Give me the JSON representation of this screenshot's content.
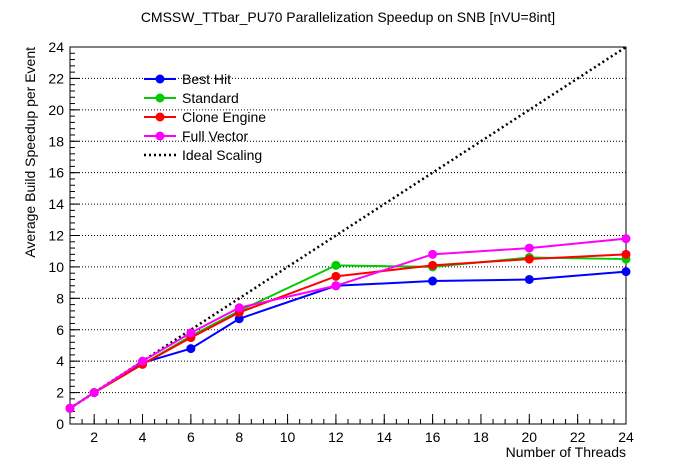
{
  "chart_data": {
    "type": "line",
    "title": "CMSSW_TTbar_PU70 Parallelization Speedup on SNB [nVU=8int]",
    "xlabel": "Number of Threads",
    "ylabel": "Average Build Speedup per Event",
    "xlim": [
      1,
      24
    ],
    "ylim": [
      0,
      24
    ],
    "xticks": [
      2,
      4,
      6,
      8,
      10,
      12,
      14,
      16,
      18,
      20,
      22,
      24
    ],
    "yticks": [
      0,
      2,
      4,
      6,
      8,
      10,
      12,
      14,
      16,
      18,
      20,
      22,
      24
    ],
    "grid": true,
    "legend_position": "top-left",
    "x": [
      1,
      2,
      4,
      6,
      8,
      12,
      16,
      20,
      24
    ],
    "series": [
      {
        "name": "Best Hit",
        "color": "#0000ff",
        "values": [
          1.0,
          2.0,
          3.9,
          4.8,
          6.7,
          8.8,
          9.1,
          9.2,
          9.7
        ]
      },
      {
        "name": "Standard",
        "color": "#00cc00",
        "values": [
          1.0,
          2.0,
          3.8,
          5.6,
          7.2,
          10.1,
          10.0,
          10.6,
          10.5
        ]
      },
      {
        "name": "Clone Engine",
        "color": "#ff0000",
        "values": [
          1.0,
          2.0,
          3.8,
          5.5,
          7.1,
          9.4,
          10.1,
          10.5,
          10.8
        ]
      },
      {
        "name": "Full Vector",
        "color": "#ff00ff",
        "values": [
          1.0,
          2.0,
          4.0,
          5.8,
          7.4,
          8.8,
          10.8,
          11.2,
          11.8
        ]
      }
    ],
    "ideal": {
      "name": "Ideal Scaling",
      "color": "#000000",
      "x": [
        1,
        24
      ],
      "values": [
        1,
        24
      ]
    }
  }
}
